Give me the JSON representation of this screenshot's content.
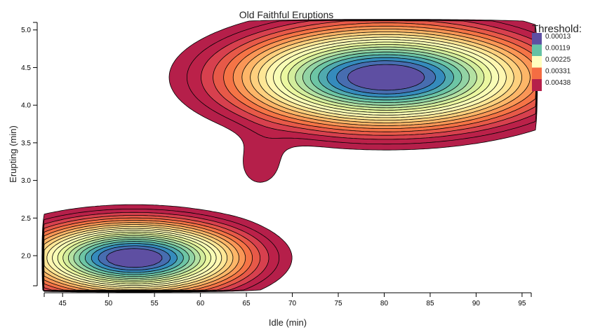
{
  "chart_data": {
    "type": "contour",
    "title": "Old Faithful Eruptions",
    "xlabel": "Idle (min)",
    "ylabel": "Erupting (min)",
    "xlim": [
      43,
      96
    ],
    "ylim": [
      1.6,
      5.1
    ],
    "x_ticks": [
      45,
      50,
      55,
      60,
      65,
      70,
      75,
      80,
      85,
      90,
      95
    ],
    "y_ticks": [
      2.0,
      2.5,
      3.0,
      3.5,
      4.0,
      4.5,
      5.0
    ],
    "x_tick_labels": [
      "45",
      "50",
      "55",
      "60",
      "65",
      "70",
      "75",
      "80",
      "85",
      "90",
      "95"
    ],
    "y_tick_labels": [
      "2.0",
      "2.5",
      "3.0",
      "3.5",
      "4.0",
      "4.5",
      "5.0"
    ],
    "clusters": [
      {
        "center": [
          52.8,
          1.97
        ],
        "spread": [
          8.0,
          0.33
        ]
      },
      {
        "center": [
          80.2,
          4.37
        ],
        "spread": [
          11.0,
          0.45
        ]
      }
    ],
    "contour_levels": 20,
    "legend": {
      "title": "Threshold:",
      "placement": "top-right",
      "values": [
        "0.00013",
        "0.00119",
        "0.00225",
        "0.00331",
        "0.00438"
      ]
    },
    "colors": {
      "outer": "#b51f4a",
      "ramp": [
        "#9e0142",
        "#d53e4f",
        "#f46d43",
        "#fdae61",
        "#fee08b",
        "#ffffbf",
        "#e6f598",
        "#abdda4",
        "#66c2a5",
        "#3288bd",
        "#5e4fa2"
      ]
    }
  }
}
